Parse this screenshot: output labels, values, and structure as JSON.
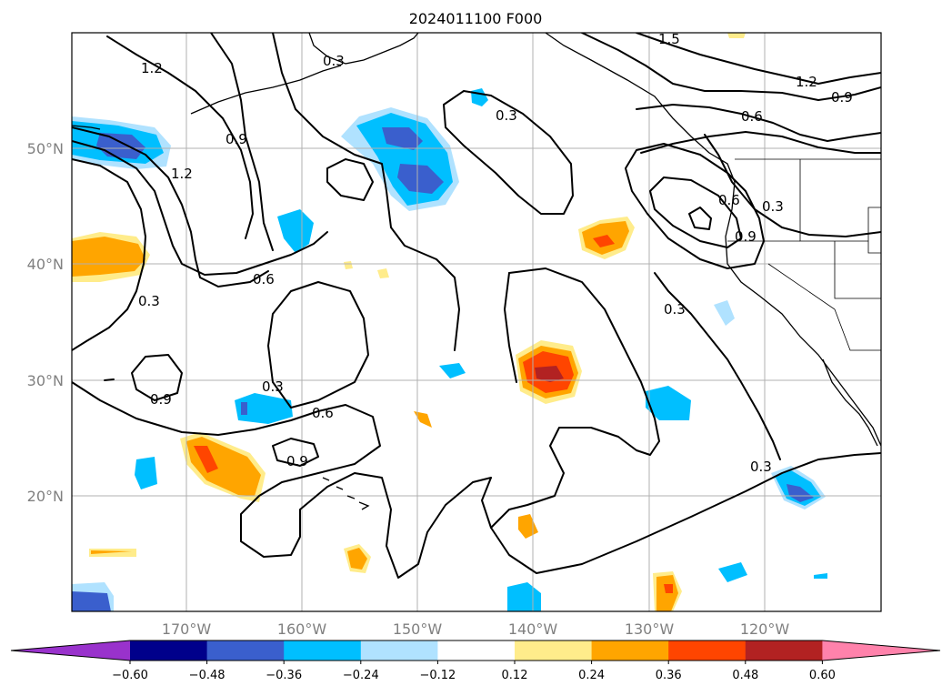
{
  "title": "2024011100 F000",
  "map": {
    "lat_labels": [
      "50°N",
      "40°N",
      "30°N",
      "20°N"
    ],
    "lon_labels": [
      "170°W",
      "160°W",
      "150°W",
      "140°W",
      "130°W",
      "120°W"
    ],
    "contour_labels": [
      "1.2",
      "1.2",
      "0.9",
      "0.3",
      "0.6",
      "0.9",
      "0.3",
      "0.6",
      "0.9",
      "0.3",
      "0.3",
      "1.5",
      "1.2",
      "0.9",
      "0.6",
      "0.6",
      "0.3",
      "0.9",
      "0.3",
      "0.3"
    ],
    "colors": {
      "grid": "#b0b0b0",
      "neg_strong": "#3a5fcd",
      "neg_mid": "#00bfff",
      "neg_weak": "#b0e2ff",
      "pos_weak": "#ffec8b",
      "pos_mid": "#ffa500",
      "pos_strong": "#ff4500",
      "pos_vstrong": "#b22222"
    }
  },
  "colorbar": {
    "ticks": [
      "−0.60",
      "−0.48",
      "−0.36",
      "−0.24",
      "−0.12",
      "0.12",
      "0.24",
      "0.36",
      "0.48",
      "0.60"
    ],
    "colors": [
      "#9932cc",
      "#00008b",
      "#3a5fcd",
      "#00bfff",
      "#b0e2ff",
      "#ffffff",
      "#ffec8b",
      "#ffa500",
      "#ff4500",
      "#b22222",
      "#ff82ab"
    ]
  }
}
